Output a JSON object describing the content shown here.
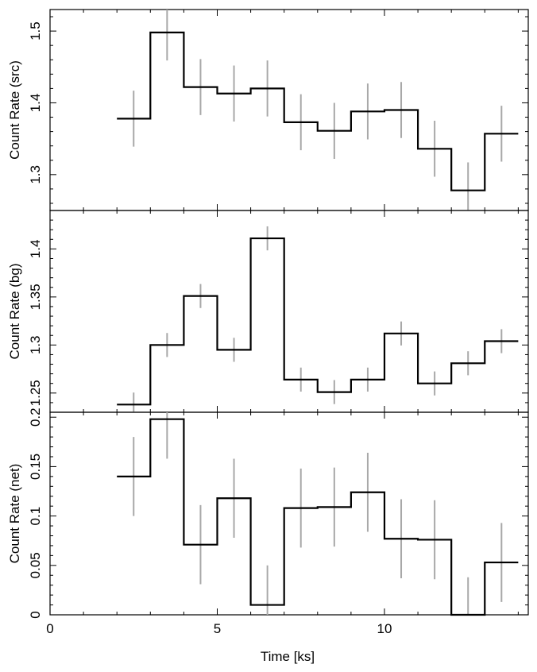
{
  "chart_data": {
    "type": "line",
    "style": "step-histogram-with-errorbars",
    "xlabel": "Time [ks]",
    "xlim": [
      0,
      14.3
    ],
    "x_ticks": [
      0,
      5,
      10
    ],
    "bin_edges": [
      2,
      3,
      4,
      5,
      6,
      7,
      8,
      9,
      10,
      11,
      12,
      13,
      14
    ],
    "bin_centers": [
      2.5,
      3.5,
      4.5,
      5.5,
      6.5,
      7.5,
      8.5,
      9.5,
      10.5,
      11.5,
      12.5,
      13.5
    ],
    "panels": [
      {
        "id": "src",
        "ylabel": "Count Rate (src)",
        "ylim": [
          1.25,
          1.53
        ],
        "y_ticks": [
          1.3,
          1.4,
          1.5
        ],
        "y_tick_labels": [
          "1.3",
          "1.4",
          "1.5"
        ],
        "values": [
          1.378,
          1.498,
          1.422,
          1.413,
          1.42,
          1.373,
          1.361,
          1.388,
          1.39,
          1.336,
          1.278,
          1.357
        ],
        "errors": [
          0.039,
          0.039,
          0.039,
          0.039,
          0.039,
          0.039,
          0.039,
          0.039,
          0.039,
          0.039,
          0.039,
          0.039
        ]
      },
      {
        "id": "bg",
        "ylabel": "Count Rate (bg)",
        "ylim": [
          1.23,
          1.44
        ],
        "y_ticks": [
          1.25,
          1.3,
          1.35,
          1.4
        ],
        "y_tick_labels": [
          "1.25",
          "1.3",
          "1.35",
          "1.4"
        ],
        "values": [
          1.238,
          1.3,
          1.351,
          1.295,
          1.411,
          1.264,
          1.251,
          1.264,
          1.312,
          1.26,
          1.281,
          1.304
        ],
        "errors": [
          0.0125,
          0.0125,
          0.0125,
          0.0125,
          0.0125,
          0.0125,
          0.0125,
          0.0125,
          0.0125,
          0.0125,
          0.0125,
          0.0125
        ]
      },
      {
        "id": "net",
        "ylabel": "Count Rate (net)",
        "ylim": [
          0,
          0.205
        ],
        "y_ticks": [
          0,
          0.05,
          0.1,
          0.15,
          0.2
        ],
        "y_tick_labels": [
          "0",
          "0.05",
          "0.1",
          "0.15",
          "0.2"
        ],
        "values": [
          0.14,
          0.198,
          0.071,
          0.118,
          0.01,
          0.108,
          0.109,
          0.124,
          0.077,
          0.076,
          -0.002,
          0.053
        ],
        "errors": [
          0.04,
          0.04,
          0.04,
          0.04,
          0.04,
          0.04,
          0.04,
          0.04,
          0.04,
          0.04,
          0.04,
          0.04
        ]
      }
    ]
  }
}
